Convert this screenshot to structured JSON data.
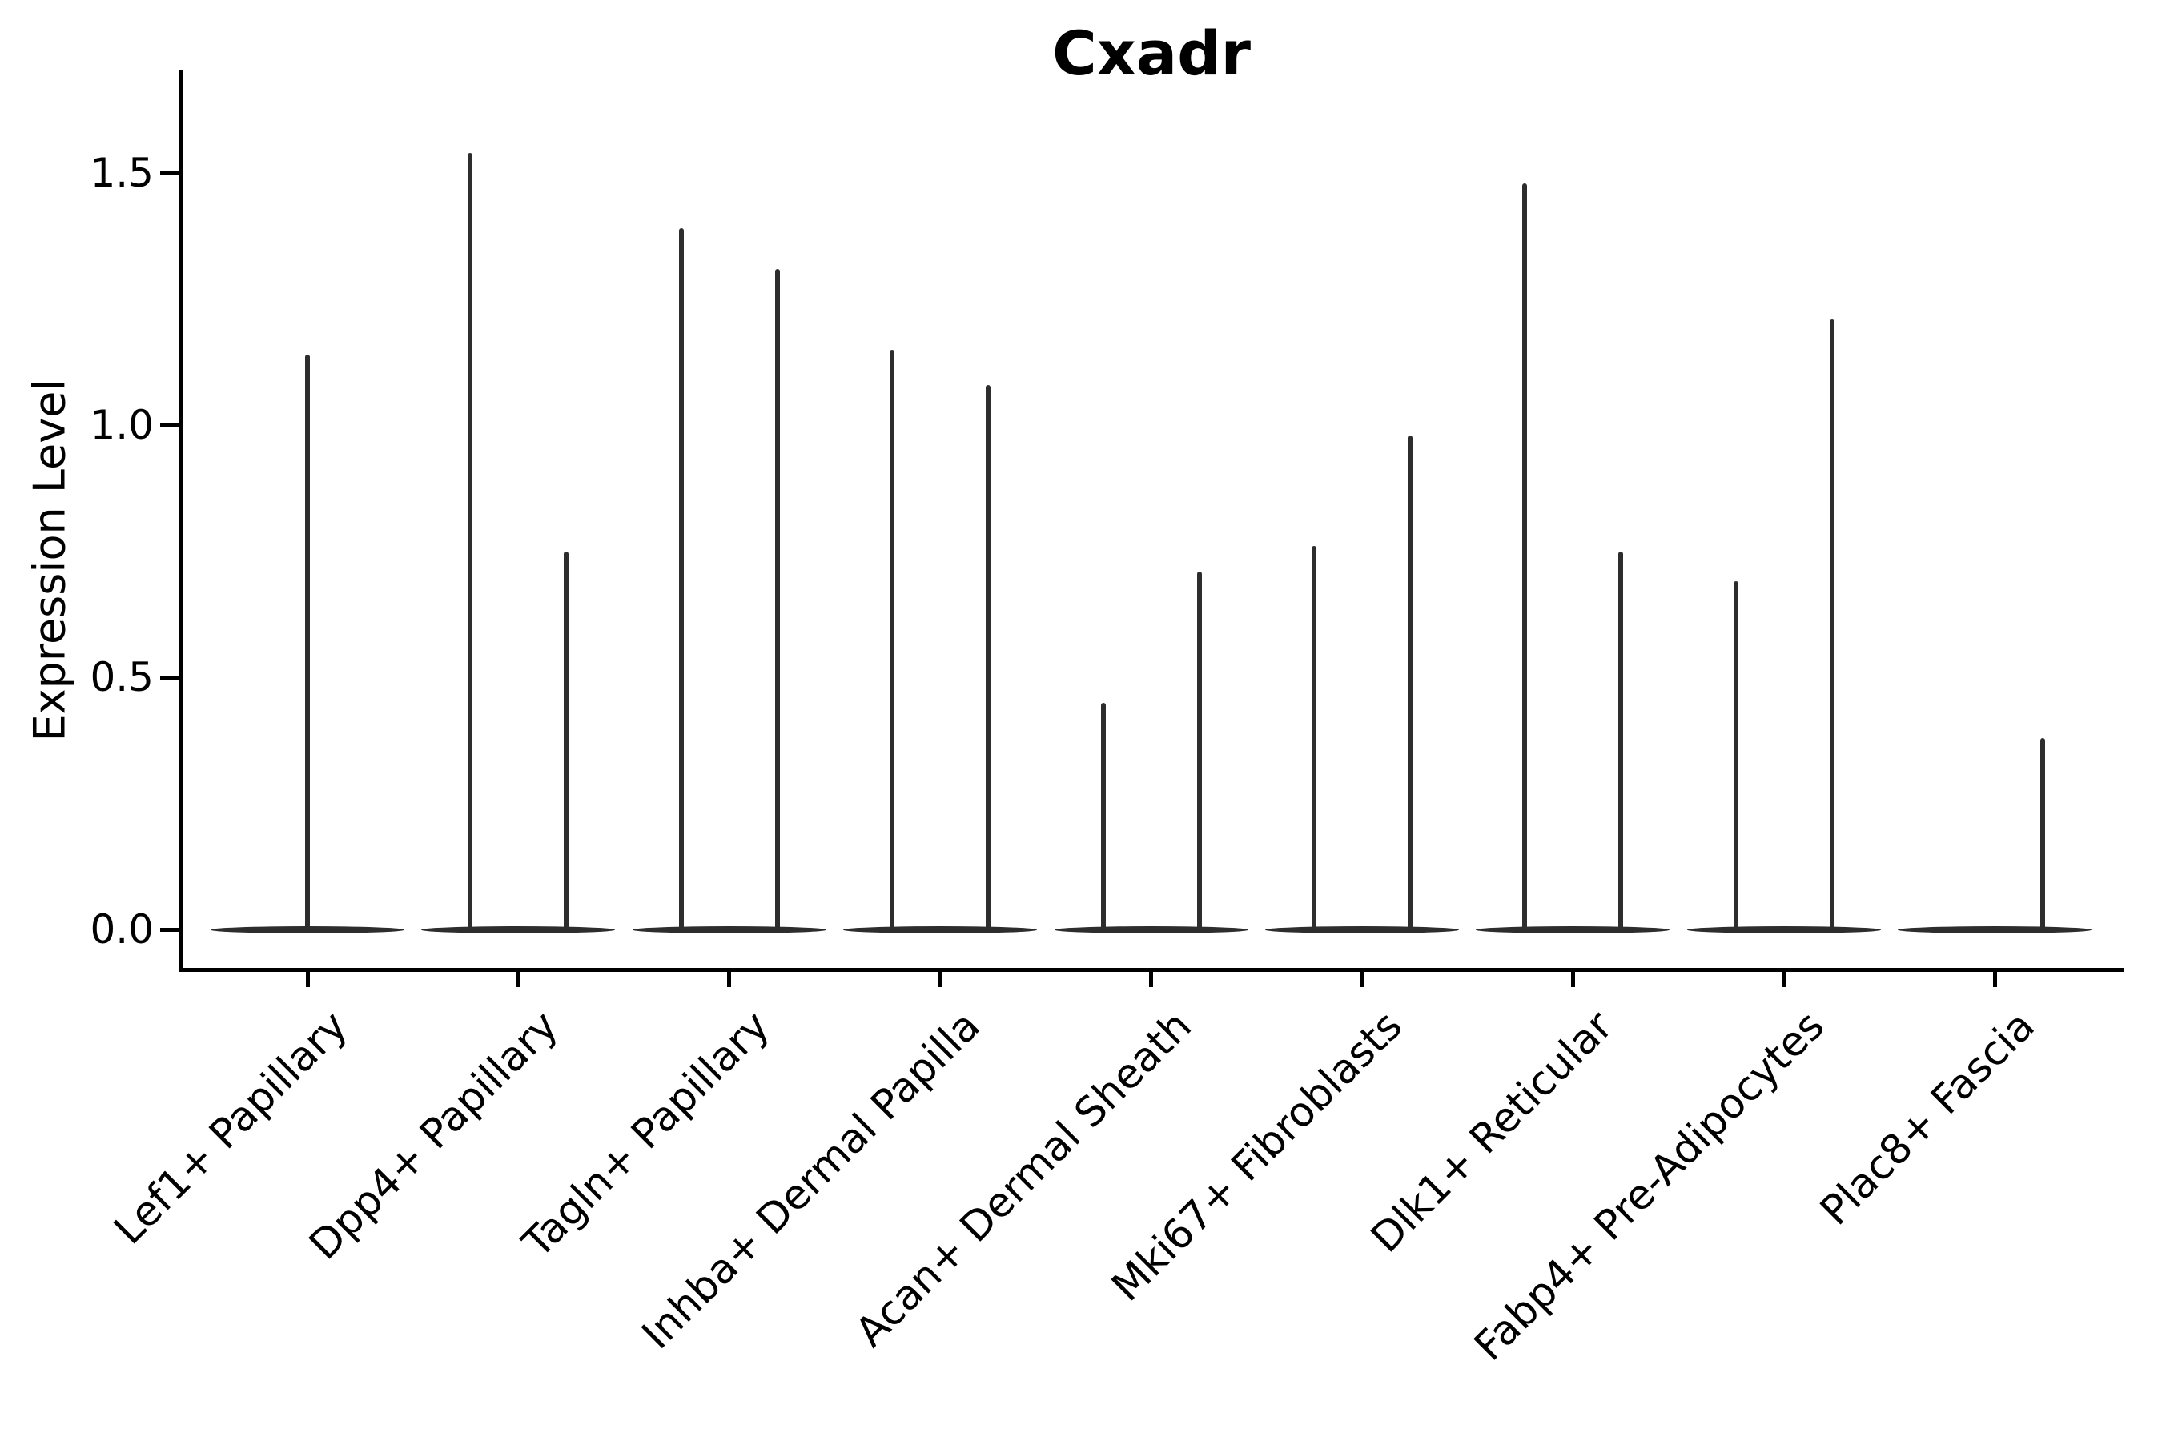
{
  "figure": {
    "background": "#ffffff"
  },
  "chart_data": {
    "type": "violin",
    "title": "Cxadr",
    "ylabel": "Expression Level",
    "xlabel": "",
    "yticks": [
      0.0,
      0.5,
      1.0,
      1.5
    ],
    "ytick_labels": [
      "0.0",
      "0.5",
      "1.0",
      "1.5"
    ],
    "ylim": [
      -0.08,
      1.7
    ],
    "grid": false,
    "legend_position": "none",
    "violin_color": "#2d2d2d",
    "text_color": "#000000",
    "categories": [
      "Lef1+ Papillary",
      "Dpp4+ Papillary",
      "Tagln+ Papillary",
      "Inhba+ Dermal Papilla",
      "Acan+ Dermal Sheath",
      "Mki67+ Fibroblasts",
      "Dlk1+ Reticular",
      "Fabp4+ Pre-Adipocytes",
      "Plac8+ Fascia"
    ],
    "series": [
      {
        "category": "Lef1+ Papillary",
        "spikes": [
          {
            "side": "center",
            "max": 1.14
          }
        ]
      },
      {
        "category": "Dpp4+ Papillary",
        "spikes": [
          {
            "side": "left",
            "max": 1.54
          },
          {
            "side": "right",
            "max": 0.75
          }
        ]
      },
      {
        "category": "Tagln+ Papillary",
        "spikes": [
          {
            "side": "left",
            "max": 1.39
          },
          {
            "side": "right",
            "max": 1.31
          }
        ]
      },
      {
        "category": "Inhba+ Dermal Papilla",
        "spikes": [
          {
            "side": "left",
            "max": 1.15
          },
          {
            "side": "right",
            "max": 1.08
          }
        ]
      },
      {
        "category": "Acan+ Dermal Sheath",
        "spikes": [
          {
            "side": "left",
            "max": 0.45
          },
          {
            "side": "right",
            "max": 0.71
          }
        ]
      },
      {
        "category": "Mki67+ Fibroblasts",
        "spikes": [
          {
            "side": "left",
            "max": 0.76
          },
          {
            "side": "right",
            "max": 0.98
          }
        ]
      },
      {
        "category": "Dlk1+ Reticular",
        "spikes": [
          {
            "side": "left",
            "max": 1.48
          },
          {
            "side": "right",
            "max": 0.75
          }
        ]
      },
      {
        "category": "Fabp4+ Pre-Adipocytes",
        "spikes": [
          {
            "side": "left",
            "max": 0.69
          },
          {
            "side": "right",
            "max": 1.21
          }
        ]
      },
      {
        "category": "Plac8+ Fascia",
        "spikes": [
          {
            "side": "right",
            "max": 0.38
          }
        ]
      }
    ]
  }
}
